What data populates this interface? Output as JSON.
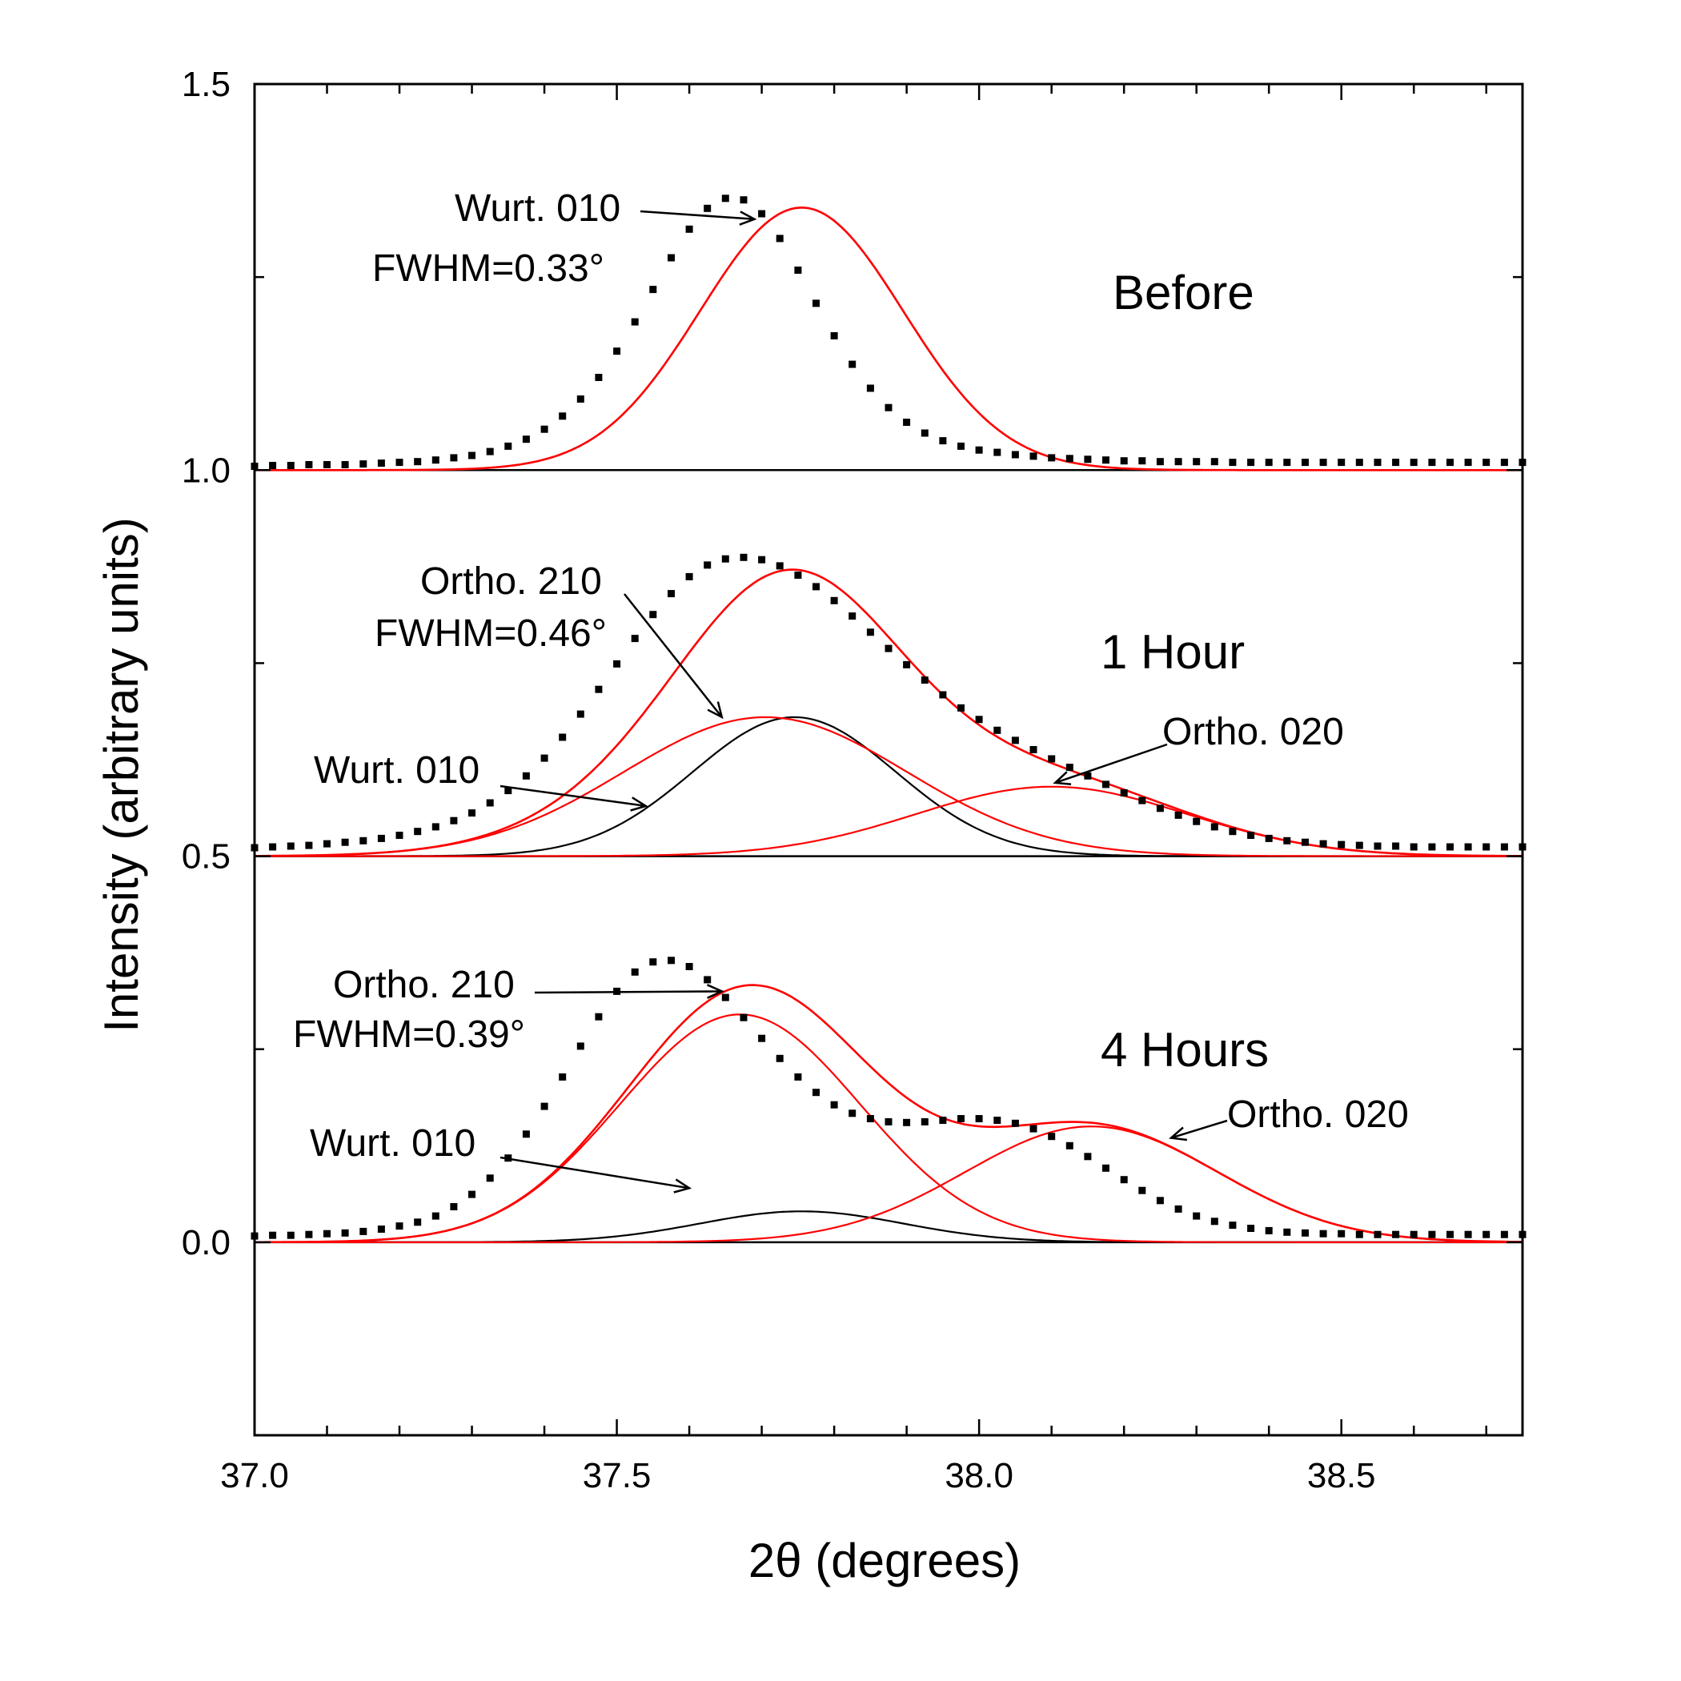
{
  "chart_data": {
    "type": "line",
    "xlabel": "2θ (degrees)",
    "ylabel": "Intensity (arbitrary units)",
    "xlim": [
      37.0,
      38.75
    ],
    "ylim": [
      -0.25,
      1.5
    ],
    "x_ticks": [
      37.0,
      37.5,
      38.0,
      38.5
    ],
    "x_tick_labels": [
      "37.0",
      "37.5",
      "38.0",
      "38.5"
    ],
    "y_ticks": [
      0.0,
      0.5,
      1.0,
      1.5
    ],
    "y_tick_labels": [
      "0.0",
      "0.5",
      "1.0",
      "1.5"
    ],
    "grid": false,
    "baselines": [
      0.0,
      0.5,
      1.0
    ],
    "colors": {
      "data": "#000000",
      "fit": "#ff0000",
      "wurtzite_component": "#000000",
      "axes": "#000000"
    },
    "panels": [
      {
        "label": "Before",
        "offset": 1.0,
        "data_points": {
          "x": [
            37.0,
            37.025,
            37.05,
            37.075,
            37.1,
            37.125,
            37.15,
            37.175,
            37.2,
            37.225,
            37.25,
            37.275,
            37.3,
            37.325,
            37.35,
            37.375,
            37.4,
            37.425,
            37.45,
            37.475,
            37.5,
            37.525,
            37.55,
            37.575,
            37.6,
            37.625,
            37.65,
            37.675,
            37.7,
            37.725,
            37.75,
            37.775,
            37.8,
            37.825,
            37.85,
            37.875,
            37.9,
            37.925,
            37.95,
            37.975,
            38.0,
            38.025,
            38.05,
            38.075,
            38.1,
            38.125,
            38.15,
            38.175,
            38.2,
            38.225,
            38.25,
            38.275,
            38.3,
            38.325,
            38.35,
            38.375,
            38.4,
            38.425,
            38.45,
            38.475,
            38.5,
            38.525,
            38.55,
            38.575,
            38.6,
            38.625,
            38.65,
            38.675,
            38.7,
            38.725,
            38.75
          ],
          "y": [
            1.005,
            1.006,
            1.006,
            1.007,
            1.007,
            1.007,
            1.008,
            1.009,
            1.01,
            1.011,
            1.013,
            1.016,
            1.019,
            1.024,
            1.031,
            1.04,
            1.053,
            1.07,
            1.092,
            1.12,
            1.154,
            1.192,
            1.234,
            1.275,
            1.312,
            1.339,
            1.352,
            1.35,
            1.332,
            1.3,
            1.259,
            1.216,
            1.174,
            1.137,
            1.106,
            1.081,
            1.062,
            1.048,
            1.038,
            1.031,
            1.026,
            1.023,
            1.02,
            1.018,
            1.016,
            1.015,
            1.014,
            1.013,
            1.012,
            1.012,
            1.011,
            1.011,
            1.011,
            1.011,
            1.01,
            1.01,
            1.01,
            1.01,
            1.01,
            1.01,
            1.01,
            1.01,
            1.01,
            1.01,
            1.01,
            1.01,
            1.01,
            1.01,
            1.01,
            1.01,
            1.01
          ]
        },
        "components": [
          {
            "color": "#ff0000",
            "center": 37.755,
            "fwhm": 0.33,
            "height": 0.34
          }
        ],
        "annotations": [
          {
            "text": "Wurt. 010",
            "points_to": [
              37.69,
              1.325
            ]
          },
          {
            "text": "FWHM=0.33°"
          }
        ]
      },
      {
        "label": "1 Hour",
        "offset": 0.5,
        "data_points": {
          "x": [
            37.0,
            37.025,
            37.05,
            37.075,
            37.1,
            37.125,
            37.15,
            37.175,
            37.2,
            37.225,
            37.25,
            37.275,
            37.3,
            37.325,
            37.35,
            37.375,
            37.4,
            37.425,
            37.45,
            37.475,
            37.5,
            37.525,
            37.55,
            37.575,
            37.6,
            37.625,
            37.65,
            37.675,
            37.7,
            37.725,
            37.75,
            37.775,
            37.8,
            37.825,
            37.85,
            37.875,
            37.9,
            37.925,
            37.95,
            37.975,
            38.0,
            38.025,
            38.05,
            38.075,
            38.1,
            38.125,
            38.15,
            38.175,
            38.2,
            38.225,
            38.25,
            38.275,
            38.3,
            38.325,
            38.35,
            38.375,
            38.4,
            38.425,
            38.45,
            38.475,
            38.5,
            38.525,
            38.55,
            38.575,
            38.6,
            38.625,
            38.65,
            38.675,
            38.7,
            38.725,
            38.75
          ],
          "y": [
            0.511,
            0.512,
            0.513,
            0.514,
            0.516,
            0.518,
            0.52,
            0.523,
            0.527,
            0.532,
            0.538,
            0.546,
            0.556,
            0.569,
            0.585,
            0.604,
            0.627,
            0.654,
            0.684,
            0.716,
            0.749,
            0.782,
            0.813,
            0.84,
            0.862,
            0.877,
            0.885,
            0.887,
            0.884,
            0.876,
            0.864,
            0.849,
            0.831,
            0.811,
            0.79,
            0.769,
            0.748,
            0.728,
            0.709,
            0.692,
            0.677,
            0.663,
            0.65,
            0.638,
            0.626,
            0.615,
            0.604,
            0.593,
            0.582,
            0.572,
            0.562,
            0.553,
            0.545,
            0.538,
            0.532,
            0.527,
            0.523,
            0.52,
            0.518,
            0.516,
            0.515,
            0.514,
            0.513,
            0.513,
            0.512,
            0.512,
            0.512,
            0.512,
            0.512,
            0.512,
            0.512
          ]
        },
        "components": [
          {
            "color": "#000000",
            "center": 37.745,
            "fwhm": 0.33,
            "height": 0.18
          },
          {
            "color": "#ff0000",
            "center": 37.705,
            "fwhm": 0.46,
            "height": 0.18
          },
          {
            "color": "#ff0000",
            "center": 38.1,
            "fwhm": 0.44,
            "height": 0.09
          }
        ],
        "annotations": [
          {
            "text": "Ortho. 210",
            "points_to": [
              37.645,
              0.68
            ]
          },
          {
            "text": "FWHM=0.46°"
          },
          {
            "text": "Ortho. 020",
            "points_to": [
              38.105,
              0.595
            ]
          },
          {
            "text": "Wurt. 010",
            "points_to": [
              37.54,
              0.565
            ]
          }
        ]
      },
      {
        "label": "4 Hours",
        "offset": 0.0,
        "data_points": {
          "x": [
            37.0,
            37.025,
            37.05,
            37.075,
            37.1,
            37.125,
            37.15,
            37.175,
            37.2,
            37.225,
            37.25,
            37.275,
            37.3,
            37.325,
            37.35,
            37.375,
            37.4,
            37.425,
            37.45,
            37.475,
            37.5,
            37.525,
            37.55,
            37.575,
            37.6,
            37.625,
            37.65,
            37.675,
            37.7,
            37.725,
            37.75,
            37.775,
            37.8,
            37.825,
            37.85,
            37.875,
            37.9,
            37.925,
            37.95,
            37.975,
            38.0,
            38.025,
            38.05,
            38.075,
            38.1,
            38.125,
            38.15,
            38.175,
            38.2,
            38.225,
            38.25,
            38.275,
            38.3,
            38.325,
            38.35,
            38.375,
            38.4,
            38.425,
            38.45,
            38.475,
            38.5,
            38.525,
            38.55,
            38.575,
            38.6,
            38.625,
            38.65,
            38.675,
            38.7,
            38.725,
            38.75
          ],
          "y": [
            0.008,
            0.009,
            0.009,
            0.01,
            0.011,
            0.012,
            0.014,
            0.017,
            0.021,
            0.026,
            0.034,
            0.046,
            0.062,
            0.083,
            0.109,
            0.14,
            0.176,
            0.214,
            0.254,
            0.292,
            0.325,
            0.35,
            0.363,
            0.365,
            0.357,
            0.34,
            0.317,
            0.291,
            0.264,
            0.238,
            0.214,
            0.194,
            0.178,
            0.167,
            0.16,
            0.156,
            0.155,
            0.156,
            0.158,
            0.16,
            0.16,
            0.158,
            0.154,
            0.147,
            0.137,
            0.125,
            0.111,
            0.096,
            0.081,
            0.067,
            0.054,
            0.043,
            0.034,
            0.027,
            0.022,
            0.018,
            0.015,
            0.013,
            0.012,
            0.011,
            0.011,
            0.01,
            0.01,
            0.01,
            0.01,
            0.01,
            0.01,
            0.01,
            0.01,
            0.01,
            0.01
          ]
        },
        "components": [
          {
            "color": "#000000",
            "center": 37.755,
            "fwhm": 0.33,
            "height": 0.04
          },
          {
            "color": "#ff0000",
            "center": 37.67,
            "fwhm": 0.39,
            "height": 0.295
          },
          {
            "color": "#ff0000",
            "center": 38.155,
            "fwhm": 0.41,
            "height": 0.15
          }
        ],
        "annotations": [
          {
            "text": "Ortho. 210",
            "points_to": [
              37.645,
              0.325
            ]
          },
          {
            "text": "FWHM=0.39°"
          },
          {
            "text": "Ortho. 020",
            "points_to": [
              38.265,
              0.135
            ]
          },
          {
            "text": "Wurt. 010",
            "points_to": [
              37.6,
              0.07
            ]
          }
        ]
      }
    ]
  }
}
